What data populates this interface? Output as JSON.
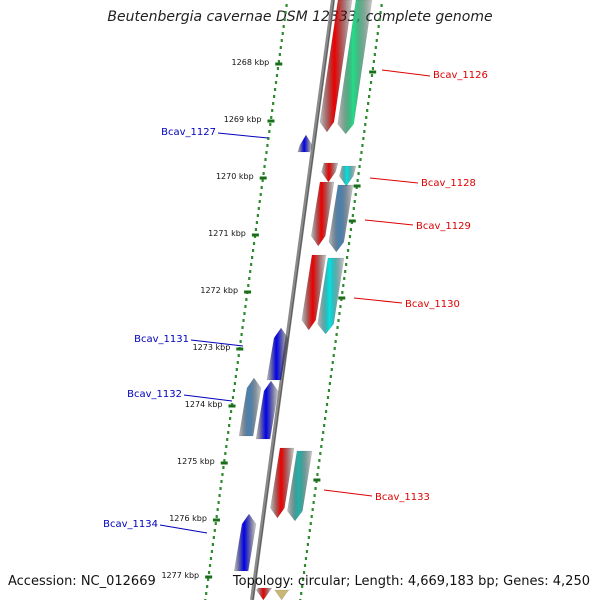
{
  "title": "Beutenbergia cavernae DSM 12333, complete genome",
  "footer": {
    "accession": "Accession: NC_012669",
    "summary": "Topology: circular; Length: 4,669,183 bp; Genes: 4,250"
  },
  "axis": {
    "unit": "kbp",
    "ticks": [
      {
        "kbp": 1268,
        "label": "1268 kbp"
      },
      {
        "kbp": 1269,
        "label": "1269 kbp"
      },
      {
        "kbp": 1270,
        "label": "1270 kbp"
      },
      {
        "kbp": 1271,
        "label": "1271 kbp"
      },
      {
        "kbp": 1272,
        "label": "1272 kbp"
      },
      {
        "kbp": 1273,
        "label": "1273 kbp"
      },
      {
        "kbp": 1274,
        "label": "1274 kbp"
      },
      {
        "kbp": 1275,
        "label": "1275 kbp"
      },
      {
        "kbp": 1276,
        "label": "1276 kbp"
      },
      {
        "kbp": 1277,
        "label": "1277 kbp"
      }
    ]
  },
  "colors": {
    "forward_label": "#dd0000",
    "reverse_label": "#0000bb",
    "backbone": "#8a8a8a",
    "dots": "#2e8b2e",
    "tick": "#1a6e1a",
    "red": "#ee0000",
    "blue": "#0000ee",
    "steel": "#4682b4",
    "cyan": "#00e5e5",
    "teal": "#20b2aa",
    "green": "#22dd88"
  },
  "genes": [
    {
      "id": "Bcav_1126",
      "label": "Bcav_1126",
      "strand": "forward"
    },
    {
      "id": "Bcav_1127",
      "label": "Bcav_1127",
      "strand": "reverse"
    },
    {
      "id": "Bcav_1128",
      "label": "Bcav_1128",
      "strand": "forward"
    },
    {
      "id": "Bcav_1129",
      "label": "Bcav_1129",
      "strand": "forward"
    },
    {
      "id": "Bcav_1130",
      "label": "Bcav_1130",
      "strand": "forward"
    },
    {
      "id": "Bcav_1131",
      "label": "Bcav_1131",
      "strand": "reverse"
    },
    {
      "id": "Bcav_1132",
      "label": "Bcav_1132",
      "strand": "reverse"
    },
    {
      "id": "Bcav_1133",
      "label": "Bcav_1133",
      "strand": "forward"
    },
    {
      "id": "Bcav_1134",
      "label": "Bcav_1134",
      "strand": "reverse"
    }
  ]
}
